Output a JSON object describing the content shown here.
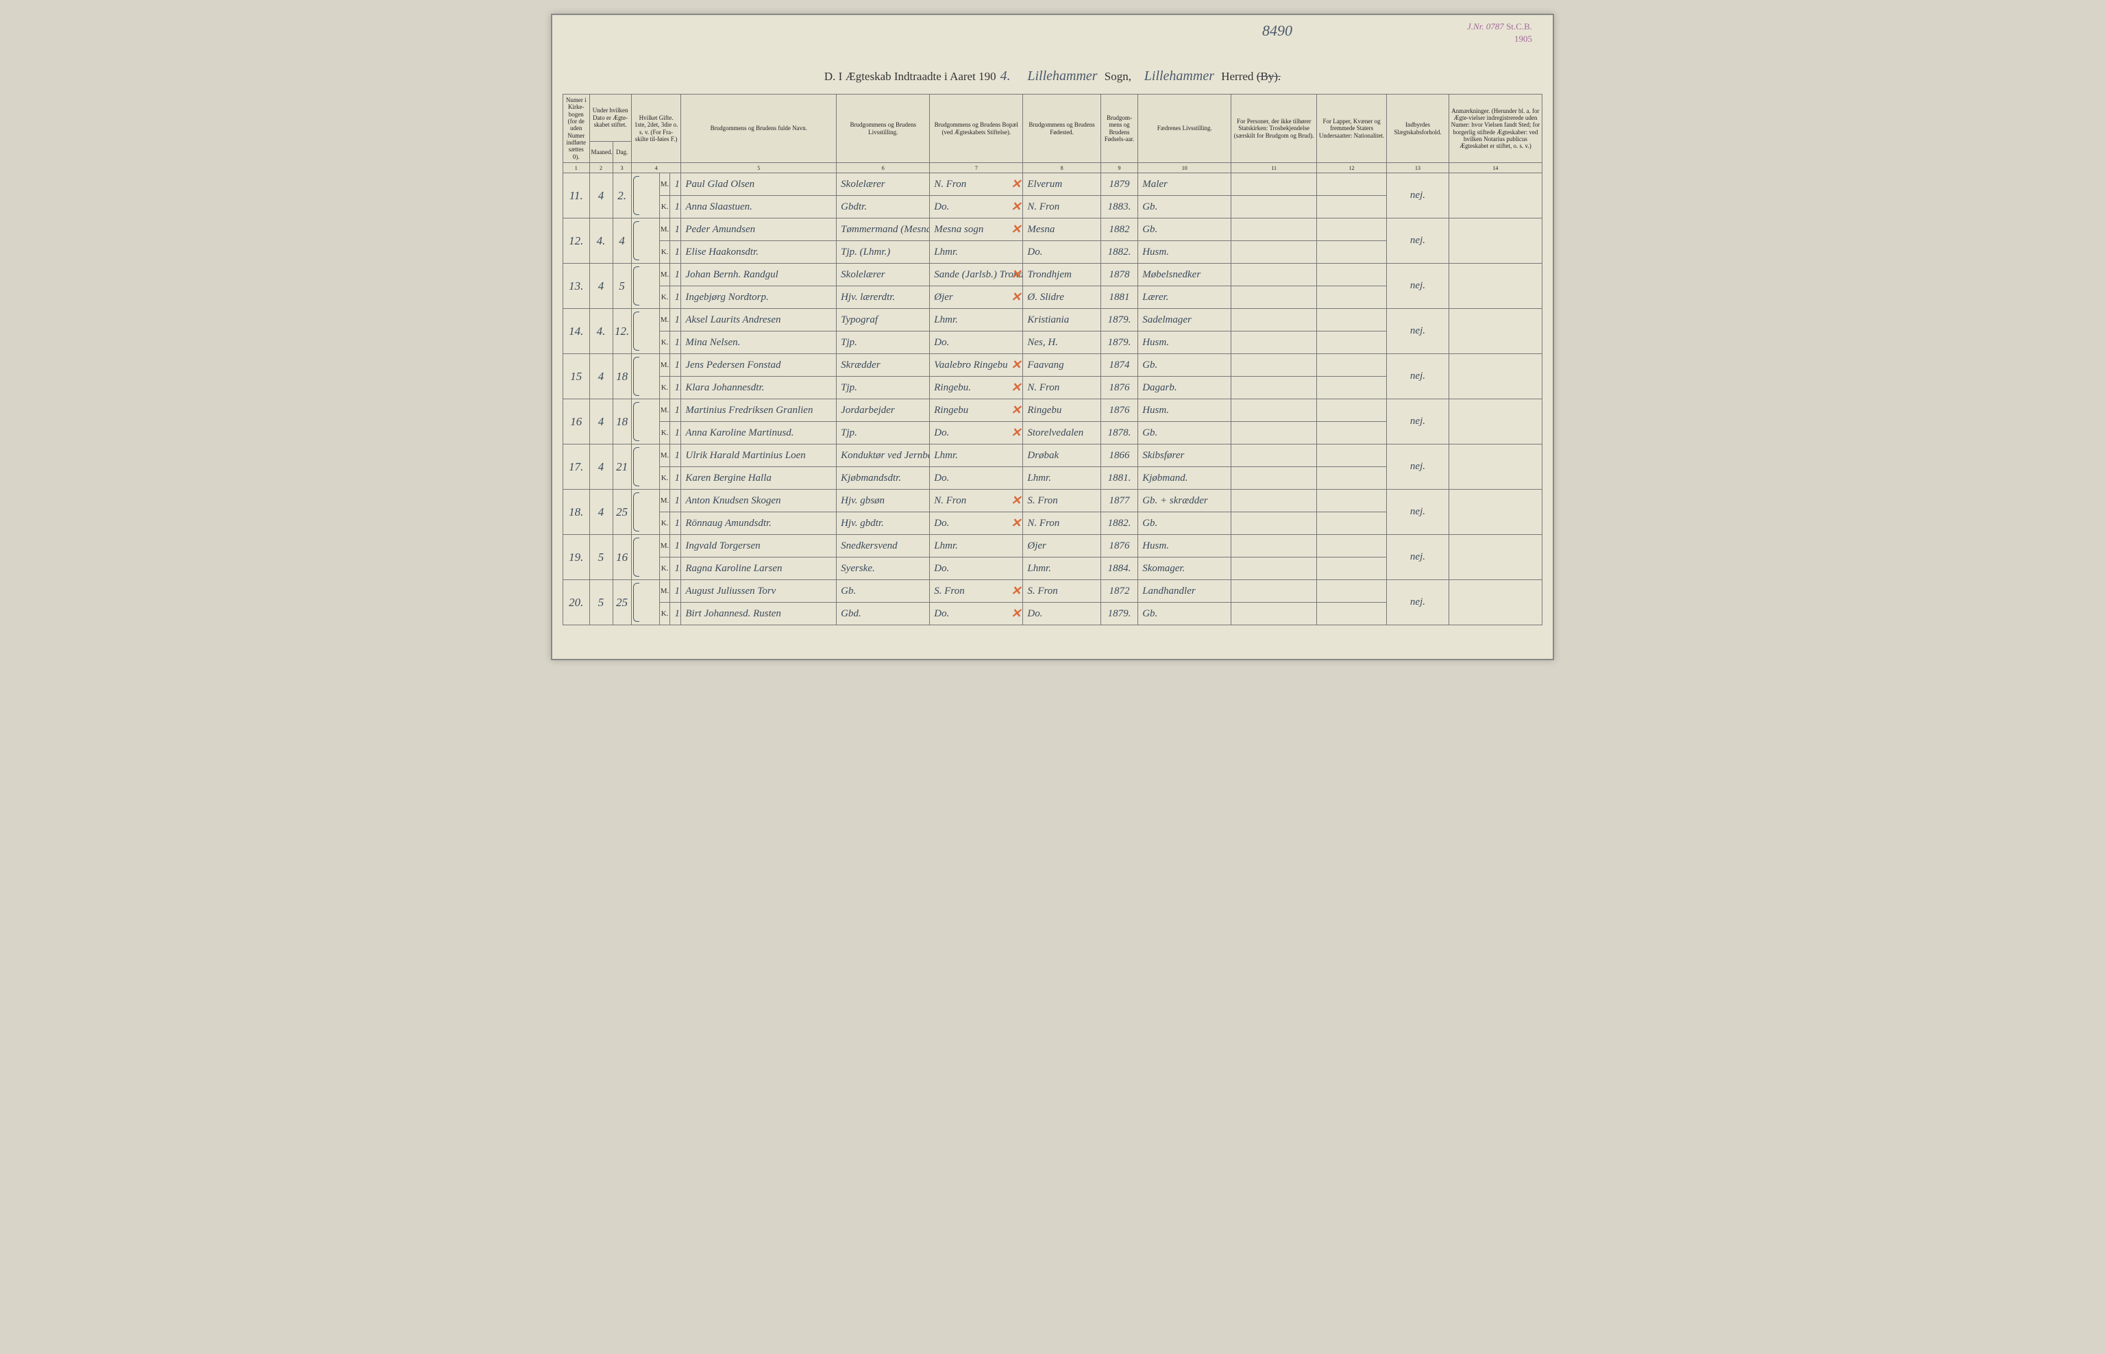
{
  "top_number": "8490",
  "stamp": {
    "jnr": "J.Nr. 0787",
    "stcb": "St.C.B.",
    "year": "1905"
  },
  "title": {
    "prefix": "D.  I Ægteskab Indtraadte i Aaret 190",
    "year_digit": "4.",
    "sogn_label": "Sogn,",
    "sogn_value": "Lillehammer",
    "herred_label": "Herred (By).",
    "herred_value": "Lillehammer"
  },
  "headers": {
    "c1": "Numer i Kirke-bogen (for de uden Numer indførte sættes 0).",
    "c2": "Under hvilken Dato er Ægte-skabet stiftet.",
    "c2a": "Maaned.",
    "c2b": "Dag.",
    "c3": "Hvilket Gifte. 1ste, 2det, 3die o. s. v. (For Fra-skilte til-føies F.)",
    "c4": "Brudgommens og Brudens fulde Navn.",
    "c5": "Brudgommens og Brudens Livsstilling.",
    "c6": "Brudgommens og Brudens Bopæl (ved Ægteskabets Stiftelse).",
    "c7": "Brudgommens og Brudens Fødested.",
    "c8": "Brudgom-mens og Brudens Fødsels-aar.",
    "c9": "Fædrenes Livsstilling.",
    "c10": "For Personer, der ikke tilhører Statskirken: Trosbekjendelse (særskilt for Brudgom og Brud).",
    "c11": "For Lapper, Kvæner og fremmede Staters Undersaatter: Nationalitet.",
    "c12": "Indbyrdes Slægtskabsforhold.",
    "c13": "Anmærkninger. (Herunder bl. a. for Ægte-vielser indregistrerede uden Numer: hvor Vielsen fandt Sted; for borgerlig stiftede Ægteskaber: ved hvilken Notarius publicus Ægteskabet er stiftet, o. s. v.)"
  },
  "colnums": [
    "1",
    "2",
    "3",
    "4",
    "5",
    "6",
    "7",
    "8",
    "9",
    "10",
    "11",
    "12",
    "13",
    "14"
  ],
  "rows": [
    {
      "num": "11.",
      "month": "4",
      "day": "2.",
      "m": {
        "gifte": "1",
        "name": "Paul Glad Olsen",
        "livs": "Skolelærer",
        "bopal": "N. Fron",
        "x": true,
        "fodested": "Elverum",
        "aar": "1879",
        "fadr": "Maler"
      },
      "k": {
        "gifte": "1.",
        "name": "Anna Slaastuen.",
        "livs": "Gbdtr.",
        "bopal": "Do.",
        "x": true,
        "fodested": "N. Fron",
        "aar": "1883.",
        "fadr": "Gb."
      },
      "slegt": "nej."
    },
    {
      "num": "12.",
      "month": "4.",
      "day": "4",
      "m": {
        "gifte": "1",
        "name": "Peder Amundsen",
        "livs": "Tømmermand (Mesna sogn)",
        "bopal": "Mesna sogn",
        "x": true,
        "fodested": "Mesna",
        "aar": "1882",
        "fadr": "Gb."
      },
      "k": {
        "gifte": "1.",
        "name": "Elise Haakonsdtr.",
        "livs": "Tjp. (Lhmr.)",
        "bopal": "Lhmr.",
        "x": false,
        "fodested": "Do.",
        "aar": "1882.",
        "fadr": "Husm."
      },
      "slegt": "nej."
    },
    {
      "num": "13.",
      "month": "4",
      "day": "5",
      "m": {
        "gifte": "1",
        "name": "Johan Bernh. Randgul",
        "livs": "Skolelærer",
        "bopal": "Sande (Jarlsb.) Trondhjem",
        "x": true,
        "fodested": "Trondhjem",
        "aar": "1878",
        "fadr": "Møbelsnedker"
      },
      "k": {
        "gifte": "1.",
        "name": "Ingebjørg Nordtorp.",
        "livs": "Hjv. lærerdtr.",
        "bopal": "Øjer",
        "x": true,
        "fodested": "Ø. Slidre",
        "aar": "1881",
        "fadr": "Lærer."
      },
      "slegt": "nej."
    },
    {
      "num": "14.",
      "month": "4.",
      "day": "12.",
      "m": {
        "gifte": "1",
        "name": "Aksel Laurits Andresen",
        "livs": "Typograf",
        "bopal": "Lhmr.",
        "x": false,
        "fodested": "Kristiania",
        "aar": "1879.",
        "fadr": "Sadelmager"
      },
      "k": {
        "gifte": "1.",
        "name": "Mina Nelsen.",
        "livs": "Tjp.",
        "bopal": "Do.",
        "x": false,
        "fodested": "Nes, H.",
        "aar": "1879.",
        "fadr": "Husm."
      },
      "slegt": "nej."
    },
    {
      "num": "15",
      "month": "4",
      "day": "18",
      "m": {
        "gifte": "1",
        "name": "Jens Pedersen Fonstad",
        "livs": "Skrædder",
        "bopal": "Vaalebro Ringebu",
        "x": true,
        "fodested": "Faavang",
        "aar": "1874",
        "fadr": "Gb."
      },
      "k": {
        "gifte": "1.",
        "name": "Klara Johannesdtr.",
        "livs": "Tjp.",
        "bopal": "Ringebu.",
        "x": true,
        "fodested": "N. Fron",
        "aar": "1876",
        "fadr": "Dagarb."
      },
      "slegt": "nej."
    },
    {
      "num": "16",
      "month": "4",
      "day": "18",
      "m": {
        "gifte": "1",
        "name": "Martinius Fredriksen Granlien",
        "livs": "Jordarbejder",
        "bopal": "Ringebu",
        "x": true,
        "fodested": "Ringebu",
        "aar": "1876",
        "fadr": "Husm."
      },
      "k": {
        "gifte": "1.",
        "name": "Anna Karoline Martinusd.",
        "livs": "Tjp.",
        "bopal": "Do.",
        "x": true,
        "fodested": "Storelvedalen",
        "aar": "1878.",
        "fadr": "Gb."
      },
      "slegt": "nej."
    },
    {
      "num": "17.",
      "month": "4",
      "day": "21",
      "m": {
        "gifte": "1",
        "name": "Ulrik Harald Martinius Loen",
        "livs": "Konduktør ved Jernbanen",
        "bopal": "Lhmr.",
        "x": false,
        "fodested": "Drøbak",
        "aar": "1866",
        "fadr": "Skibsfører"
      },
      "k": {
        "gifte": "1",
        "name": "Karen Bergine Halla",
        "livs": "Kjøbmandsdtr.",
        "bopal": "Do.",
        "x": false,
        "fodested": "Lhmr.",
        "aar": "1881.",
        "fadr": "Kjøbmand."
      },
      "slegt": "nej."
    },
    {
      "num": "18.",
      "month": "4",
      "day": "25",
      "m": {
        "gifte": "1",
        "name": "Anton Knudsen Skogen",
        "livs": "Hjv. gbsøn",
        "bopal": "N. Fron",
        "x": true,
        "fodested": "S. Fron",
        "aar": "1877",
        "fadr": "Gb. + skrædder"
      },
      "k": {
        "gifte": "1.",
        "name": "Rönnaug Amundsdtr.",
        "livs": "Hjv. gbdtr.",
        "bopal": "Do.",
        "x": true,
        "fodested": "N. Fron",
        "aar": "1882.",
        "fadr": "Gb."
      },
      "slegt": "nej."
    },
    {
      "num": "19.",
      "month": "5",
      "day": "16",
      "m": {
        "gifte": "1",
        "name": "Ingvald Torgersen",
        "livs": "Snedkersvend",
        "bopal": "Lhmr.",
        "x": false,
        "fodested": "Øjer",
        "aar": "1876",
        "fadr": "Husm."
      },
      "k": {
        "gifte": "1.",
        "name": "Ragna Karoline Larsen",
        "livs": "Syerske.",
        "bopal": "Do.",
        "x": false,
        "fodested": "Lhmr.",
        "aar": "1884.",
        "fadr": "Skomager."
      },
      "slegt": "nej."
    },
    {
      "num": "20.",
      "month": "5",
      "day": "25",
      "m": {
        "gifte": "1",
        "name": "August Juliussen Torv",
        "livs": "Gb.",
        "bopal": "S. Fron",
        "x": true,
        "fodested": "S. Fron",
        "aar": "1872",
        "fadr": "Landhandler"
      },
      "k": {
        "gifte": "1.",
        "name": "Birt Johannesd. Rusten",
        "livs": "Gbd.",
        "bopal": "Do.",
        "x": true,
        "fodested": "Do.",
        "aar": "1879.",
        "fadr": "Gb."
      },
      "slegt": "nej."
    }
  ],
  "mk": {
    "m": "M.",
    "k": "K."
  }
}
